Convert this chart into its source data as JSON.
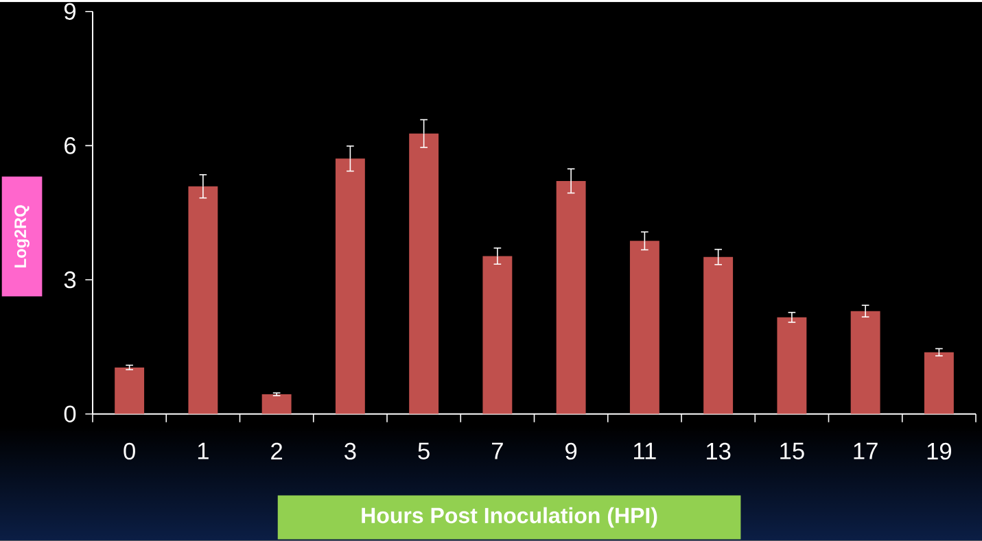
{
  "chart_data": {
    "type": "bar",
    "xlabel": "Hours Post Inoculation (HPI)",
    "ylabel": "Log2RQ",
    "categories": [
      "0",
      "1",
      "2",
      "3",
      "5",
      "7",
      "9",
      "11",
      "13",
      "15",
      "17",
      "19"
    ],
    "values": [
      1.04,
      5.09,
      0.44,
      5.71,
      6.27,
      3.53,
      5.21,
      3.87,
      3.51,
      2.16,
      2.3,
      1.38
    ],
    "errors": [
      0.05,
      0.26,
      0.03,
      0.28,
      0.31,
      0.18,
      0.27,
      0.2,
      0.17,
      0.11,
      0.13,
      0.08
    ],
    "color": "#c0504d",
    "ylim": [
      0,
      9
    ],
    "yticks": [
      0,
      3,
      6,
      9
    ]
  }
}
